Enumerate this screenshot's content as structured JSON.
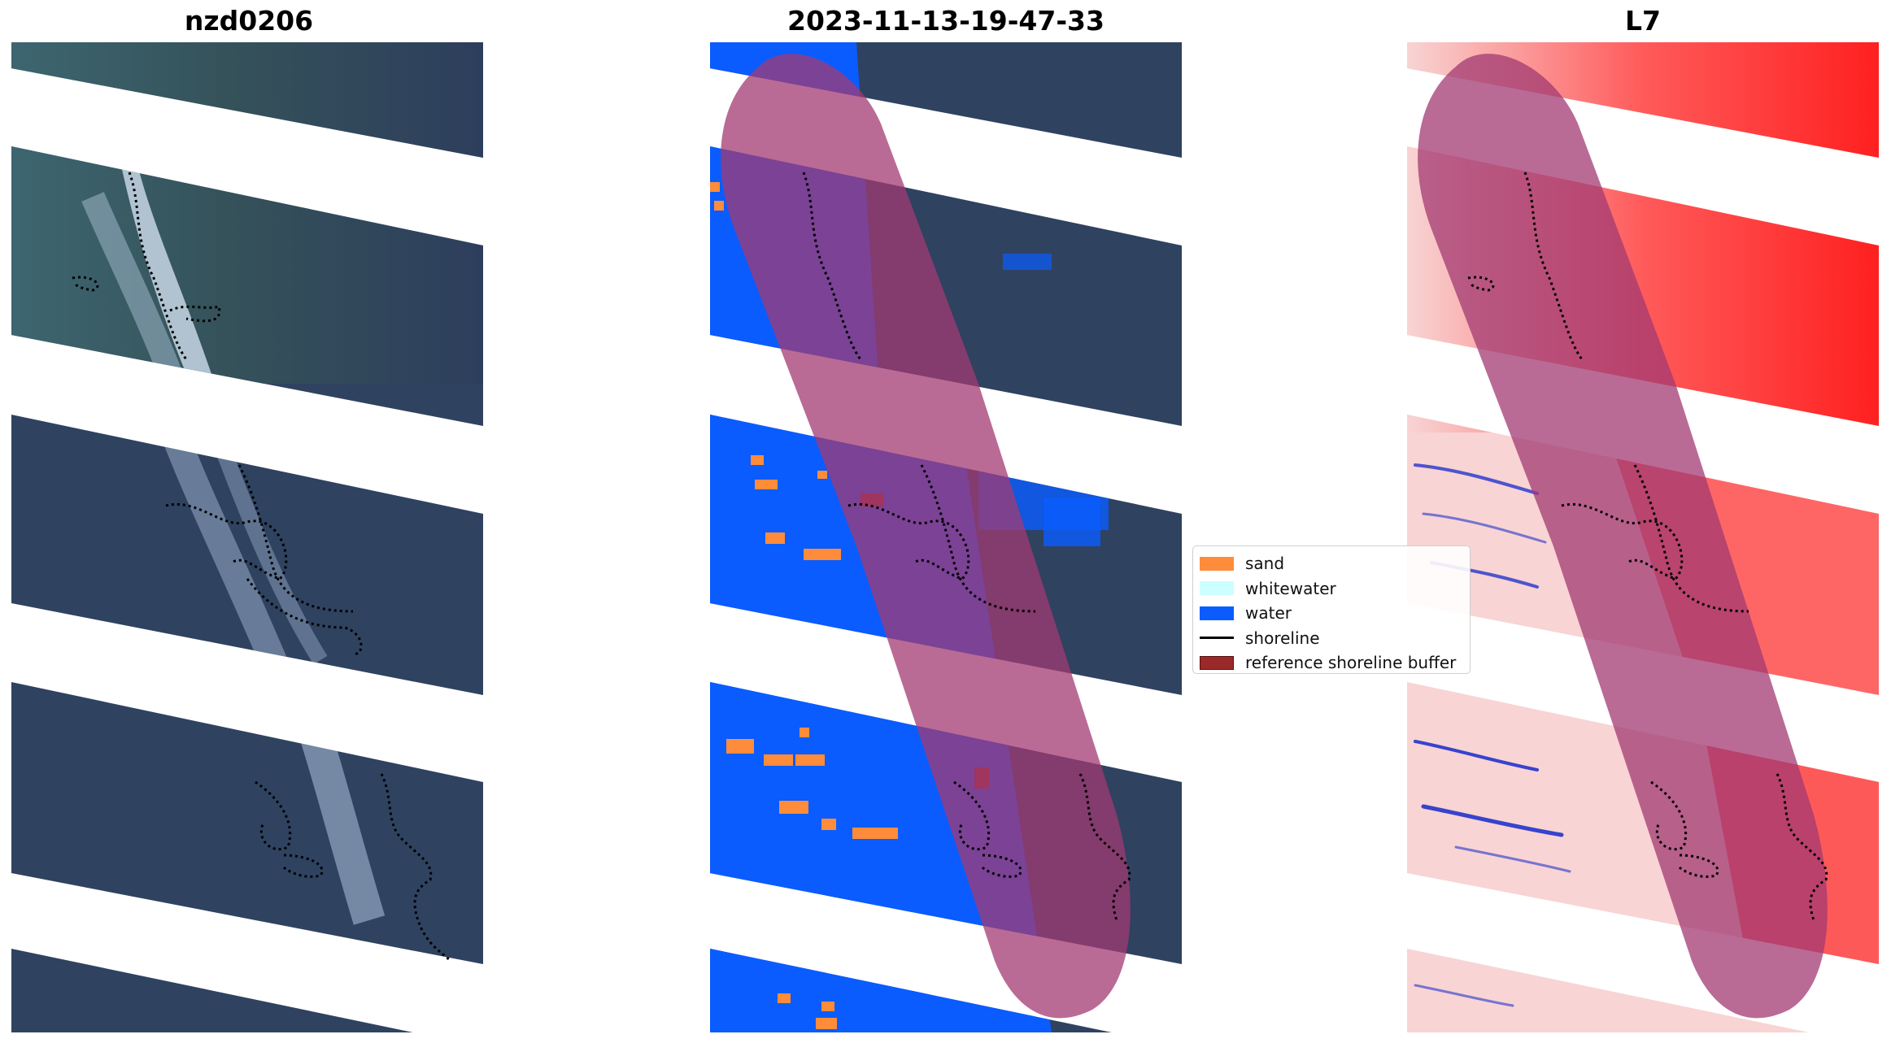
{
  "titles": {
    "left": "nzd0206",
    "middle": "2023-11-13-19-47-33",
    "right": "L7"
  },
  "legend": {
    "items": [
      {
        "label": "sand",
        "color": "#ff8c3a",
        "kind": "patch"
      },
      {
        "label": "whitewater",
        "color": "#ccffff",
        "kind": "patch"
      },
      {
        "label": "water",
        "color": "#0a5cff",
        "kind": "patch"
      },
      {
        "label": "shoreline",
        "color": "#000000",
        "kind": "line"
      },
      {
        "label": "reference shoreline buffer",
        "color": "#9a2a2a",
        "kind": "patch"
      }
    ]
  },
  "colors": {
    "sat_dark": "#2f4260",
    "sat_shore": "#3a5a58",
    "wave": "#b6c6da",
    "water_class": "#0a5cff",
    "sand_class": "#ff8c3a",
    "buffer_overlay": "#a23a72",
    "index_red": "#ff2020",
    "index_pale": "#f8d4d4",
    "index_blue": "#2233cc"
  }
}
